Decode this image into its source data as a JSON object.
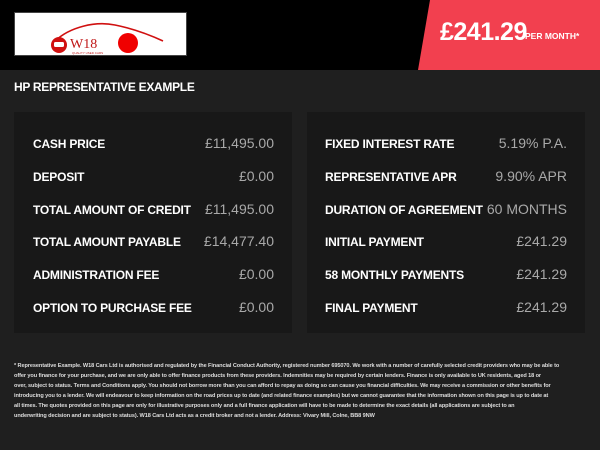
{
  "header": {
    "logo_text": "W18",
    "logo_tagline": "QUALITY USED CARS",
    "monthly_price": "£241.29",
    "per_month_label": "PER MONTH*",
    "accent_color": "#f2404f"
  },
  "section_title": "HP REPRESENTATIVE EXAMPLE",
  "left_panel": [
    {
      "label": "CASH PRICE",
      "value": "£11,495.00"
    },
    {
      "label": "DEPOSIT",
      "value": "£0.00"
    },
    {
      "label": "TOTAL AMOUNT OF CREDIT",
      "value": "£11,495.00"
    },
    {
      "label": "TOTAL AMOUNT PAYABLE",
      "value": "£14,477.40"
    },
    {
      "label": "ADMINISTRATION FEE",
      "value": "£0.00"
    },
    {
      "label": "OPTION TO PURCHASE FEE",
      "value": "£0.00"
    }
  ],
  "right_panel": [
    {
      "label": "FIXED INTEREST RATE",
      "value": "5.19% P.A."
    },
    {
      "label": "REPRESENTATIVE APR",
      "value": "9.90% APR"
    },
    {
      "label": "DURATION OF AGREEMENT",
      "value": "60 MONTHS"
    },
    {
      "label": "INITIAL PAYMENT",
      "value": "£241.29"
    },
    {
      "label": "58 MONTHLY PAYMENTS",
      "value": "£241.29"
    },
    {
      "label": "FINAL PAYMENT",
      "value": "£241.29"
    }
  ],
  "disclaimer_lines": [
    "* Representative Example. W18 Cars Ltd is authorised and regulated by the Financial Conduct Authority, registered number 695070. We work with a number of carefully selected credit providers who may be able to",
    "offer you finance for your purchase, and we are only able to offer finance products from these providers. Indemnities may be required by certain lenders. Finance is only available to UK residents, aged 18 or",
    "over, subject to status. Terms and Conditions apply. You should not borrow more than you can afford to repay as doing so can cause you financial difficulties. We may receive a commission or other benefits for",
    "introducing you to a lender. We will endeavour to keep information on the road prices up to date (and related finance examples) but we cannot guarantee that the information shown on this page is up to date at",
    "all times. The quotes provided on this page are only for illustrative purposes only and a full finance application will have to be made to determine the exact details (all applications are subject to an",
    "underwriting decision and are subject to status). W18 Cars Ltd acts as a credit broker and not a lender. Address: Vivary Mill, Colne, BB8 9NW"
  ]
}
